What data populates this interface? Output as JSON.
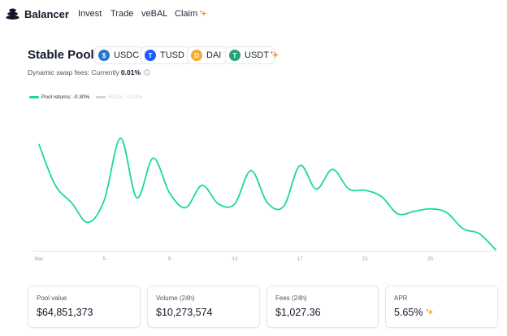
{
  "nav": {
    "brand": "Balancer",
    "items": [
      "Invest",
      "Trade",
      "veBAL",
      "Claim"
    ]
  },
  "pool": {
    "title": "Stable Pool",
    "tokens": [
      {
        "symbol": "USDC",
        "color": "#2775ca",
        "icon": "usdc-icon"
      },
      {
        "symbol": "TUSD",
        "color": "#1a5aff",
        "icon": "tusd-icon"
      },
      {
        "symbol": "DAI",
        "color": "#f5ac37",
        "icon": "dai-icon"
      },
      {
        "symbol": "USDT",
        "color": "#26a17b",
        "icon": "usdt-icon"
      }
    ],
    "fees_label": "Dynamic swap fees: Currently",
    "fees_value": "0.01%"
  },
  "legend": {
    "pool_returns": "Pool returns: -0.30%",
    "hodl": "HODL: -0.33%",
    "pool_color": "#1ad7a1",
    "hodl_color": "#d1d5db"
  },
  "chart_data": {
    "type": "line",
    "x_ticks": [
      "Mar",
      "5",
      "9",
      "13",
      "17",
      "21",
      "25"
    ],
    "series": [
      {
        "name": "Pool returns: -0.30%",
        "x": [
          1,
          2,
          3,
          4,
          5,
          6,
          7,
          8,
          9,
          10,
          11,
          12,
          13,
          14,
          15,
          16,
          17,
          18,
          19,
          20,
          21,
          22,
          23,
          24,
          25,
          26,
          27,
          28,
          29
        ],
        "values": [
          0.75,
          0.42,
          0.28,
          0.12,
          0.3,
          0.8,
          0.32,
          0.64,
          0.36,
          0.24,
          0.42,
          0.27,
          0.27,
          0.54,
          0.28,
          0.25,
          0.58,
          0.39,
          0.55,
          0.39,
          0.38,
          0.33,
          0.19,
          0.21,
          0.23,
          0.2,
          0.07,
          0.03,
          -0.1
        ]
      }
    ],
    "hodl_visible": false
  },
  "stats": [
    {
      "label": "Pool value",
      "value": "$64,851,373"
    },
    {
      "label": "Volume (24h)",
      "value": "$10,273,574"
    },
    {
      "label": "Fees (24h)",
      "value": "$1,027.36"
    },
    {
      "label": "APR",
      "value": "5.65%"
    }
  ]
}
